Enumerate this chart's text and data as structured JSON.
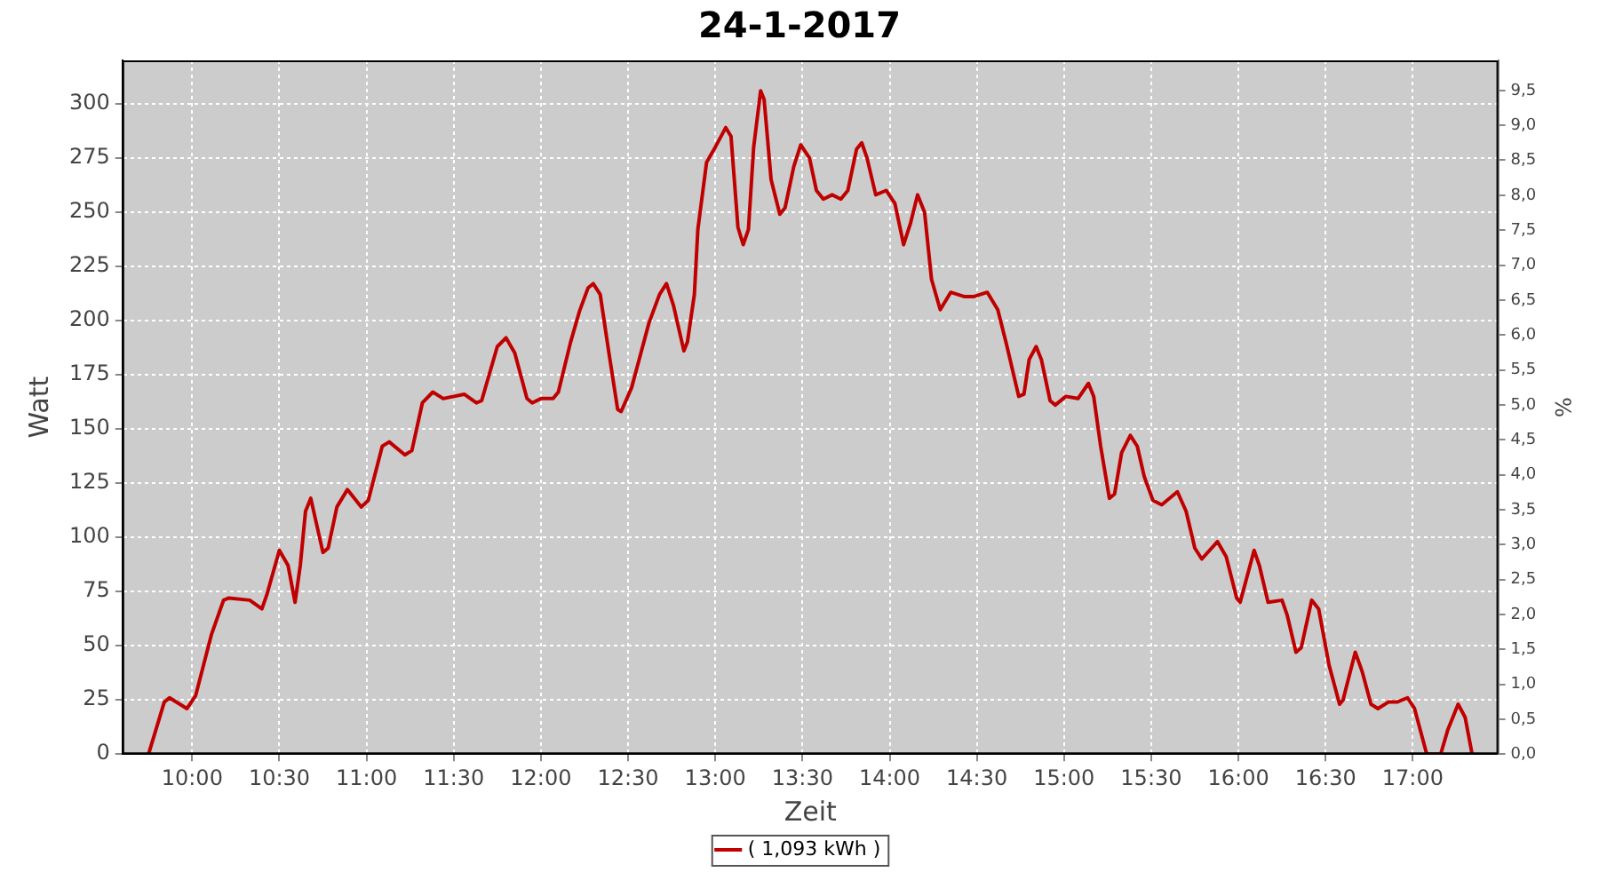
{
  "chart_data": {
    "type": "line",
    "title": "24-1-2017",
    "xlabel": "Zeit",
    "ylabel": "Watt",
    "y2label": "%",
    "xlim": [
      9.6,
      17.49
    ],
    "xticks": [
      {
        "value": 10,
        "label": "10:00"
      },
      {
        "value": 10.5,
        "label": "10:30"
      },
      {
        "value": 11,
        "label": "11:00"
      },
      {
        "value": 11.5,
        "label": "11:30"
      },
      {
        "value": 12,
        "label": "12:00"
      },
      {
        "value": 12.5,
        "label": "12:30"
      },
      {
        "value": 13,
        "label": "13:00"
      },
      {
        "value": 13.5,
        "label": "13:30"
      },
      {
        "value": 14,
        "label": "14:00"
      },
      {
        "value": 14.5,
        "label": "14:30"
      },
      {
        "value": 15,
        "label": "15:00"
      },
      {
        "value": 15.5,
        "label": "15:30"
      },
      {
        "value": 16,
        "label": "16:00"
      },
      {
        "value": 16.5,
        "label": "16:30"
      },
      {
        "value": 17,
        "label": "17:00"
      }
    ],
    "ylim": [
      0,
      320
    ],
    "yticks": [
      0,
      25,
      50,
      75,
      100,
      125,
      150,
      175,
      200,
      225,
      250,
      275,
      300
    ],
    "y2lim": [
      0,
      9.93
    ],
    "y2ticks": [
      {
        "value": 0,
        "label": "0,0"
      },
      {
        "value": 0.5,
        "label": "0,5"
      },
      {
        "value": 1,
        "label": "1,0"
      },
      {
        "value": 1.5,
        "label": "1,5"
      },
      {
        "value": 2,
        "label": "2,0"
      },
      {
        "value": 2.5,
        "label": "2,5"
      },
      {
        "value": 3,
        "label": "3,0"
      },
      {
        "value": 3.5,
        "label": "3,5"
      },
      {
        "value": 4,
        "label": "4,0"
      },
      {
        "value": 4.5,
        "label": "4,5"
      },
      {
        "value": 5,
        "label": "5,0"
      },
      {
        "value": 5.5,
        "label": "5,5"
      },
      {
        "value": 6,
        "label": "6,0"
      },
      {
        "value": 6.5,
        "label": "6,5"
      },
      {
        "value": 7,
        "label": "7,0"
      },
      {
        "value": 7.5,
        "label": "7,5"
      },
      {
        "value": 8,
        "label": "8,0"
      },
      {
        "value": 8.5,
        "label": "8,5"
      },
      {
        "value": 9,
        "label": "9,0"
      },
      {
        "value": 9.5,
        "label": "9,5"
      }
    ],
    "grid": true,
    "legend": "bottom",
    "marker": "none",
    "line_style": "solid",
    "series": [
      {
        "name": "( 1,093 kWh )",
        "color": "#c00000",
        "x": [
          9.75,
          9.84,
          9.87,
          9.97,
          10.02,
          10.11,
          10.18,
          10.21,
          10.33,
          10.4,
          10.43,
          10.5,
          10.55,
          10.59,
          10.62,
          10.65,
          10.68,
          10.75,
          10.78,
          10.83,
          10.89,
          10.97,
          11.01,
          11.09,
          11.13,
          11.22,
          11.26,
          11.32,
          11.38,
          11.44,
          11.56,
          11.63,
          11.66,
          11.75,
          11.8,
          11.85,
          11.92,
          11.95,
          12,
          12.07,
          12.1,
          12.17,
          12.22,
          12.27,
          12.3,
          12.34,
          12.39,
          12.44,
          12.46,
          12.52,
          12.57,
          12.62,
          12.68,
          12.72,
          12.76,
          12.82,
          12.84,
          12.88,
          12.9,
          12.95,
          13,
          13.06,
          13.09,
          13.13,
          13.16,
          13.19,
          13.22,
          13.26,
          13.28,
          13.32,
          13.37,
          13.4,
          13.45,
          13.49,
          13.54,
          13.58,
          13.62,
          13.67,
          13.72,
          13.76,
          13.81,
          13.84,
          13.87,
          13.92,
          13.98,
          14.03,
          14.08,
          14.12,
          14.16,
          14.2,
          14.24,
          14.29,
          14.35,
          14.43,
          14.48,
          14.56,
          14.62,
          14.67,
          14.74,
          14.77,
          14.8,
          14.84,
          14.87,
          14.92,
          14.95,
          15.01,
          15.08,
          15.14,
          15.17,
          15.21,
          15.26,
          15.29,
          15.33,
          15.38,
          15.42,
          15.46,
          15.51,
          15.56,
          15.65,
          15.7,
          15.75,
          15.79,
          15.88,
          15.93,
          15.99,
          16.01,
          16.09,
          16.12,
          16.17,
          16.25,
          16.28,
          16.33,
          16.36,
          16.42,
          16.46,
          16.52,
          16.58,
          16.6,
          16.67,
          16.71,
          16.76,
          16.8,
          16.86,
          16.91,
          16.97,
          17.01,
          17.08,
          17.16,
          17.2,
          17.26,
          17.3,
          17.34
        ],
        "values": [
          0,
          24,
          26,
          21,
          27,
          55,
          71,
          72,
          71,
          67,
          74,
          94,
          87,
          70,
          87,
          112,
          118,
          93,
          95,
          114,
          122,
          114,
          117,
          142,
          144,
          138,
          140,
          162,
          167,
          164,
          166,
          162,
          163,
          188,
          192,
          185,
          164,
          162,
          164,
          164,
          167,
          190,
          204,
          215,
          217,
          212,
          185,
          159,
          158,
          169,
          184,
          199,
          212,
          217,
          207,
          186,
          190,
          212,
          242,
          273,
          280,
          289,
          285,
          243,
          235,
          242,
          280,
          306,
          302,
          265,
          249,
          252,
          271,
          281,
          275,
          260,
          256,
          258,
          256,
          260,
          279,
          282,
          275,
          258,
          260,
          254,
          235,
          245,
          258,
          250,
          219,
          205,
          213,
          211,
          211,
          213,
          205,
          189,
          165,
          166,
          182,
          188,
          182,
          163,
          161,
          165,
          164,
          171,
          165,
          142,
          118,
          120,
          139,
          147,
          142,
          128,
          117,
          115,
          121,
          112,
          95,
          90,
          98,
          91,
          72,
          70,
          94,
          87,
          70,
          71,
          64,
          47,
          49,
          71,
          67,
          41,
          23,
          25,
          47,
          38,
          23,
          21,
          24,
          24,
          26,
          21,
          0,
          0,
          11,
          23,
          17,
          0
        ]
      }
    ]
  }
}
